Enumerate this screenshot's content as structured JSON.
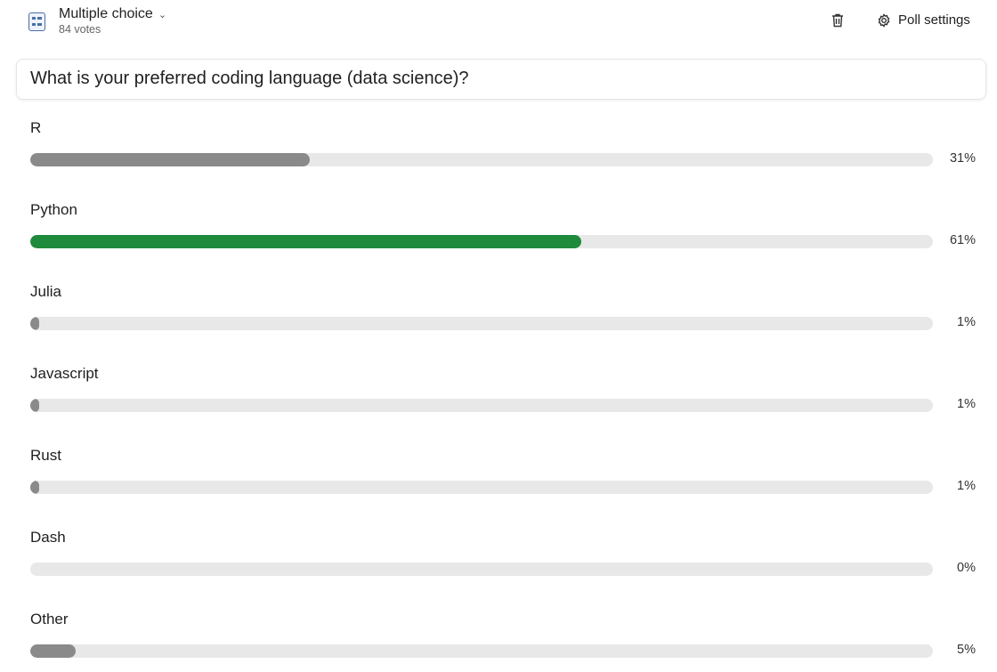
{
  "header": {
    "type_label": "Multiple choice",
    "votes": "84 votes",
    "settings_label": "Poll settings",
    "icons": {
      "poll": "poll-list-icon",
      "delete": "trash-icon",
      "settings": "gear-icon"
    }
  },
  "question": "What is your preferred coding language (data science)?",
  "colors": {
    "winner": "#1e8a3c",
    "bar": "#8a8a8a",
    "track": "#e8e8e8"
  },
  "options": [
    {
      "label": "R",
      "percent": 31,
      "pct_text": "31%",
      "winner": false
    },
    {
      "label": "Python",
      "percent": 61,
      "pct_text": "61%",
      "winner": true
    },
    {
      "label": "Julia",
      "percent": 1,
      "pct_text": "1%",
      "winner": false
    },
    {
      "label": "Javascript",
      "percent": 1,
      "pct_text": "1%",
      "winner": false
    },
    {
      "label": "Rust",
      "percent": 1,
      "pct_text": "1%",
      "winner": false
    },
    {
      "label": "Dash",
      "percent": 0,
      "pct_text": "0%",
      "winner": false
    },
    {
      "label": "Other",
      "percent": 5,
      "pct_text": "5%",
      "winner": false
    }
  ]
}
